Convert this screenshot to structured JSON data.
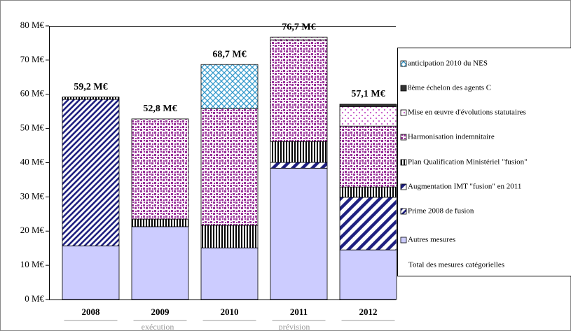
{
  "chart_data": {
    "type": "stacked-bar",
    "categories": [
      "2008",
      "2009",
      "2010",
      "2011",
      "2012"
    ],
    "series": [
      {
        "name": "Autres mesures",
        "color": "#ccccff",
        "pattern": "solid",
        "values": [
          15.7,
          21.3,
          15.1,
          38.4,
          14.5
        ]
      },
      {
        "name": "Prime 2008 de fusion",
        "color": "#1f2080",
        "pattern": "fine-diagonal",
        "values": [
          42.8,
          0,
          0,
          0,
          0
        ]
      },
      {
        "name": "Augmentation IMT \"fusion\" en 2011",
        "color": "#1f2080",
        "pattern": "wide-diagonal",
        "values": [
          0,
          0,
          0,
          1.7,
          15.4
        ]
      },
      {
        "name": "Plan Qualification Ministériel \"fusion\"",
        "color": "#000000",
        "pattern": "vertical",
        "values": [
          0.7,
          2.2,
          6.6,
          6.1,
          3.0
        ]
      },
      {
        "name": "Harmonisation indemnitaire",
        "color": "#993399",
        "pattern": "dots",
        "values": [
          0,
          29.3,
          34.1,
          29.7,
          17.8
        ]
      },
      {
        "name": "Mise en œuvre d'évolutions statutaires",
        "color": "#cc66cc",
        "pattern": "light-dots",
        "values": [
          0,
          0,
          0,
          0.8,
          5.7
        ]
      },
      {
        "name": "8ème échelon des agents C",
        "color": "#333333",
        "pattern": "solid",
        "values": [
          0,
          0,
          0,
          0,
          0.7
        ]
      },
      {
        "name": "anticipation 2010 du NES",
        "color": "#3399cc",
        "pattern": "crosshatch",
        "values": [
          0,
          0,
          12.9,
          0,
          0
        ]
      },
      {
        "name": "Total des mesures catégorielles",
        "type": "labels",
        "values": [
          59.2,
          52.8,
          68.7,
          76.7,
          57.1
        ],
        "value_labels": [
          "59,2 M€",
          "52,8 M€",
          "68,7 M€",
          "76,7 M€",
          "57,1 M€"
        ]
      }
    ],
    "annotations": [
      "exécution",
      "prévision"
    ],
    "ylim": [
      0,
      80
    ],
    "yticks": [
      {
        "value": 0,
        "label": "0 M€"
      },
      {
        "value": 10,
        "label": "10 M€"
      },
      {
        "value": 20,
        "label": "20 M€"
      },
      {
        "value": 30,
        "label": "30 M€"
      },
      {
        "value": 40,
        "label": "40 M€"
      },
      {
        "value": 50,
        "label": "50 M€"
      },
      {
        "value": 60,
        "label": "60 M€"
      },
      {
        "value": 70,
        "label": "70 M€"
      },
      {
        "value": 80,
        "label": "80 M€"
      }
    ],
    "grid": false
  }
}
